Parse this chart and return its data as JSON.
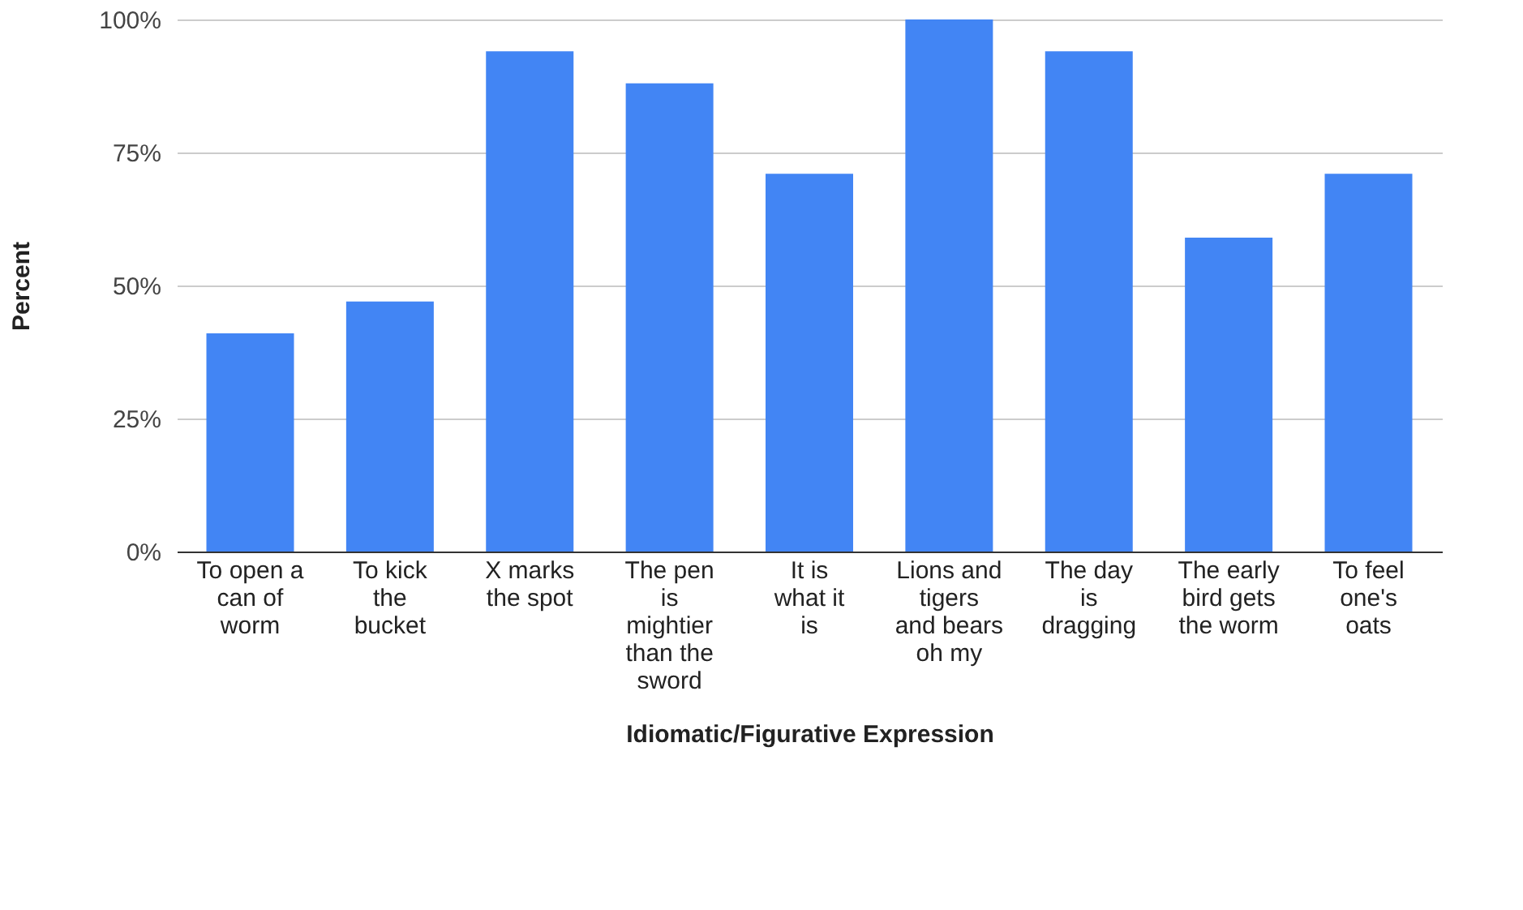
{
  "chart_data": {
    "type": "bar",
    "xlabel": "Idiomatic/Figurative Expression",
    "ylabel": "Percent",
    "categories": [
      "To open a can of worm",
      "To kick the bucket",
      "X marks the spot",
      "The pen is mightier than the sword",
      "It is what it is",
      "Lions and tigers and bears oh my",
      "The day is dragging",
      "The early bird gets the worm",
      "To feel one's oats"
    ],
    "values": [
      41,
      47,
      94,
      88,
      71,
      100,
      94,
      59,
      71
    ],
    "color": "#4285f4",
    "ylim": [
      0,
      100
    ],
    "yticks": [
      {
        "value": 0,
        "label": "0%"
      },
      {
        "value": 25,
        "label": "25%"
      },
      {
        "value": 50,
        "label": "50%"
      },
      {
        "value": 75,
        "label": "75%"
      },
      {
        "value": 100,
        "label": "100%"
      }
    ],
    "grid": "y"
  }
}
